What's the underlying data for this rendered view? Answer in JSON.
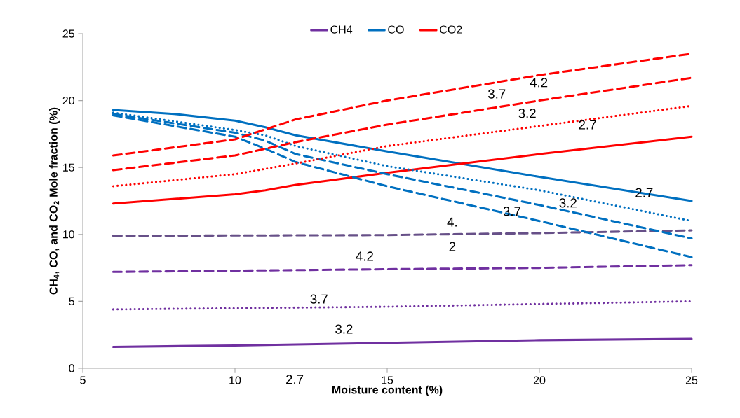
{
  "chart_data": {
    "type": "line",
    "xlabel": "Moisture content (%)",
    "ylabel": "CH$_{4}$, CO, and CO$_{2}$ Mole fraction (%)",
    "xlim": [
      5,
      25
    ],
    "xticks": [
      5,
      10,
      15,
      20,
      25
    ],
    "ylim": [
      0,
      25
    ],
    "yticks": [
      0,
      5,
      10,
      15,
      20,
      25
    ],
    "legend": "top",
    "series": [
      {
        "name": "CH4",
        "color": "#7030a0",
        "line_style": "solid",
        "x": [
          6,
          10,
          15,
          20,
          25
        ],
        "values": [
          1.6,
          1.7,
          1.9,
          2.1,
          2.2
        ]
      },
      {
        "name": "CO",
        "color": "#0070c0",
        "line_style": "solid",
        "x": [
          6,
          8,
          10,
          11,
          12,
          15,
          20,
          25
        ],
        "values": [
          19.3,
          19.0,
          18.5,
          18.0,
          17.4,
          16.2,
          14.3,
          12.5
        ]
      },
      {
        "name": "CO2",
        "color": "#ff0000",
        "line_style": "solid",
        "x": [
          6,
          10,
          11,
          12,
          15,
          20,
          25
        ],
        "values": [
          12.3,
          13.0,
          13.3,
          13.7,
          14.6,
          16.0,
          17.3
        ]
      },
      {
        "color": "#7030a0",
        "line_style": "dotted",
        "x": [
          6,
          15,
          25
        ],
        "values": [
          4.4,
          4.6,
          5.0
        ]
      },
      {
        "color": "#7030a0",
        "line_style": "dashed",
        "x": [
          6,
          15,
          20,
          25
        ],
        "values": [
          7.2,
          7.4,
          7.5,
          7.7
        ]
      },
      {
        "color": "#675088",
        "line_style": "dashed",
        "x": [
          6,
          15,
          20,
          25
        ],
        "values": [
          9.9,
          9.95,
          10.1,
          10.3
        ]
      },
      {
        "color": "#0070c0",
        "line_style": "dotted",
        "x": [
          6,
          10,
          11,
          12,
          15,
          20,
          25
        ],
        "values": [
          19.1,
          17.8,
          17.4,
          16.6,
          15.1,
          13.3,
          11.0
        ]
      },
      {
        "color": "#0070c0",
        "line_style": "dashed",
        "x": [
          6,
          10,
          11,
          12,
          15,
          20,
          25
        ],
        "values": [
          19.0,
          17.6,
          17.0,
          16.0,
          14.5,
          12.2,
          9.7
        ]
      },
      {
        "color": "#0070c0",
        "line_style": "dashed",
        "x": [
          6,
          10,
          11,
          12,
          15,
          20,
          25
        ],
        "values": [
          18.9,
          17.3,
          16.4,
          15.4,
          13.6,
          11.0,
          8.3
        ]
      },
      {
        "color": "#ff0000",
        "line_style": "dotted",
        "x": [
          6,
          10,
          12,
          15,
          20,
          25
        ],
        "values": [
          13.6,
          14.5,
          15.3,
          16.6,
          18.1,
          19.6
        ]
      },
      {
        "color": "#ff0000",
        "line_style": "dashed",
        "x": [
          6,
          10,
          12,
          15,
          20,
          25
        ],
        "values": [
          14.8,
          15.9,
          16.9,
          18.2,
          20.0,
          21.7
        ]
      },
      {
        "color": "#ff0000",
        "line_style": "dashed",
        "x": [
          6,
          10,
          12,
          15,
          20,
          25
        ],
        "values": [
          15.9,
          17.1,
          18.6,
          20.0,
          21.9,
          23.5
        ]
      }
    ],
    "annotations": [
      "4.2",
      "3.7",
      "3.2",
      "2.7",
      "2.7",
      "3.2",
      "3.7",
      "4.",
      "2",
      "4.2",
      "3.7",
      "3.2",
      "2.7"
    ]
  }
}
